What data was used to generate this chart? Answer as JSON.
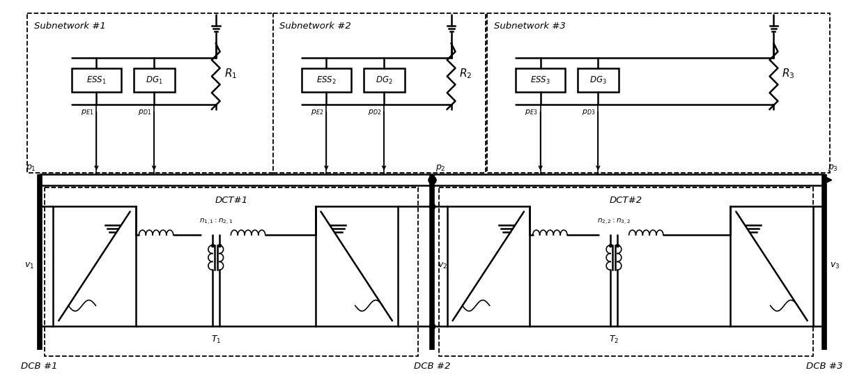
{
  "bg_color": "#ffffff",
  "line_color": "#000000",
  "fig_width": 12.4,
  "fig_height": 5.51,
  "dpi": 100,
  "subnetwork_labels": [
    "Subnetwork #1",
    "Subnetwork #2",
    "Subnetwork #3"
  ],
  "ess_labels": [
    "$ESS_1$",
    "$ESS_2$",
    "$ESS_3$"
  ],
  "dg_labels": [
    "$DG_1$",
    "$DG_2$",
    "$DG_3$"
  ],
  "r_labels": [
    "$R_1$",
    "$R_2$",
    "$R_3$"
  ],
  "p_e_labels": [
    "$p_{E1}$",
    "$p_{E2}$",
    "$p_{E3}$"
  ],
  "p_d_labels": [
    "$p_{D1}$",
    "$p_{D2}$",
    "$p_{D3}$"
  ],
  "p_labels": [
    "$p_1$",
    "$p_2$",
    "$p_3$"
  ],
  "v_labels": [
    "$v_1$",
    "$v_2$",
    "$v_3$"
  ],
  "dcb_labels": [
    "DCB #1",
    "DCB #2",
    "DCB #3"
  ],
  "dct_labels": [
    "DCT#1",
    "DCT#2"
  ],
  "t_labels": [
    "$T_1$",
    "$T_2$"
  ],
  "n_labels": [
    "$n_{1,1}:n_{2,1}$",
    "$n_{2,2}:n_{3,2}$"
  ]
}
